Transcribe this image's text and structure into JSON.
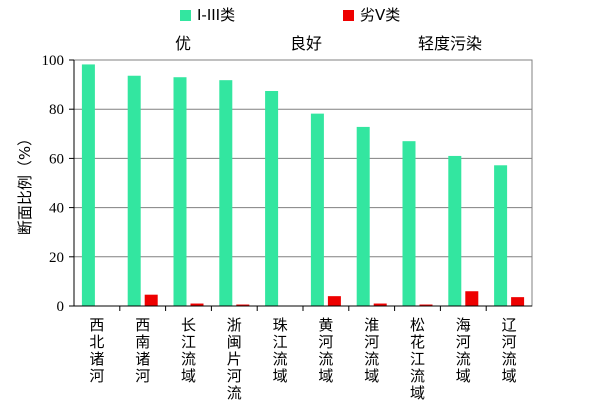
{
  "chart_data": {
    "type": "bar",
    "categories": [
      "西北诸河",
      "西南诸河",
      "长江流域",
      "浙闽片河流",
      "珠江流域",
      "黄河流域",
      "淮河流域",
      "松花江流域",
      "海河流域",
      "辽河流域"
    ],
    "series": [
      {
        "name": "I-III类",
        "color": "#33e6a0",
        "values": [
          98.2,
          93.6,
          93.0,
          91.8,
          87.4,
          78.2,
          72.8,
          67.0,
          61.0,
          57.2
        ]
      },
      {
        "name": "劣V类",
        "color": "#ee0000",
        "values": [
          0,
          4.6,
          1.0,
          0.6,
          0,
          4.0,
          1.0,
          0.6,
          6.0,
          3.6
        ]
      }
    ],
    "title": "",
    "xlabel": "",
    "ylabel": "断面比例（%）",
    "ylim": [
      0,
      100
    ],
    "yticks": [
      "0",
      "20",
      "40",
      "60",
      "80",
      "100"
    ],
    "grid": true,
    "legend_position": "top",
    "annotations": [
      "优",
      "良好",
      "轻度污染"
    ]
  }
}
